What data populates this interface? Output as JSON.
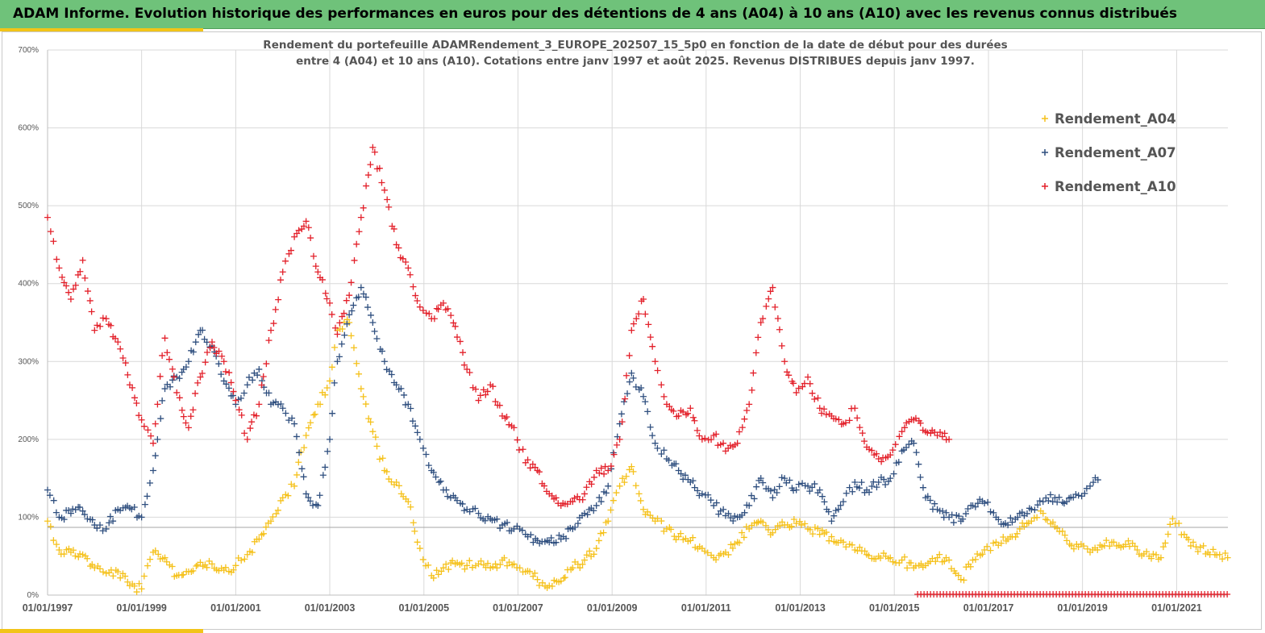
{
  "banner": {
    "title": "ADAM Informe. Evolution historique des performances en euros pour des détentions de 4 ans (A04) à 10 ans (A10) avec les revenus connus distribués"
  },
  "colors": {
    "banner": "#6fc27a",
    "accent": "#f2c418",
    "series_A04": "#f5c11a",
    "series_A07": "#2f4f7f",
    "series_A10": "#e3202a",
    "grid": "#d9d9d9",
    "reference_line": "#a6a6a6"
  },
  "chart_data": {
    "type": "scatter",
    "title_line1": "Rendement du portefeuille ADAMRendement_3_EUROPE_202507_15_5p0  en fonction de la date de début pour des durées",
    "title_line2": "entre 4 (A04) et 10 ans (A10). Cotations entre janv 1997 et août 2025. Revenus DISTRIBUES depuis janv 1997.",
    "xlabel": "",
    "ylabel": "",
    "x_ticks": [
      "01/01/1997",
      "01/01/1999",
      "01/01/2001",
      "01/01/2003",
      "01/01/2005",
      "01/01/2007",
      "01/01/2009",
      "01/01/2011",
      "01/01/2013",
      "01/01/2015",
      "01/01/2017",
      "01/01/2019",
      "01/01/2021"
    ],
    "y_ticks": [
      "0%",
      "100%",
      "200%",
      "300%",
      "400%",
      "500%",
      "600%",
      "700%"
    ],
    "xlim": [
      "1997-01-01",
      "2022-03-01"
    ],
    "ylim": [
      0,
      700
    ],
    "y_unit": "%",
    "grid": true,
    "marker": "+",
    "legend_position": "top-right",
    "reference_line_y": 87,
    "series": [
      {
        "name": "Rendement_A04",
        "color": "#f5c11a",
        "points": [
          [
            "1997-01-01",
            95
          ],
          [
            "1997-04-01",
            58
          ],
          [
            "1997-07-01",
            55
          ],
          [
            "1997-10-01",
            52
          ],
          [
            "1998-01-01",
            35
          ],
          [
            "1998-04-01",
            28
          ],
          [
            "1998-07-01",
            30
          ],
          [
            "1998-10-01",
            12
          ],
          [
            "1999-01-01",
            8
          ],
          [
            "1999-04-01",
            55
          ],
          [
            "1999-07-01",
            48
          ],
          [
            "1999-10-01",
            25
          ],
          [
            "2000-01-01",
            30
          ],
          [
            "2000-04-01",
            42
          ],
          [
            "2000-07-01",
            40
          ],
          [
            "2000-10-01",
            32
          ],
          [
            "2001-01-01",
            38
          ],
          [
            "2001-04-01",
            52
          ],
          [
            "2001-07-01",
            72
          ],
          [
            "2001-10-01",
            95
          ],
          [
            "2002-01-01",
            125
          ],
          [
            "2002-04-01",
            140
          ],
          [
            "2002-07-01",
            205
          ],
          [
            "2002-10-01",
            245
          ],
          [
            "2003-01-01",
            275
          ],
          [
            "2003-03-01",
            340
          ],
          [
            "2003-06-01",
            350
          ],
          [
            "2003-09-01",
            265
          ],
          [
            "2003-12-01",
            210
          ],
          [
            "2004-03-01",
            160
          ],
          [
            "2004-06-01",
            145
          ],
          [
            "2004-09-01",
            120
          ],
          [
            "2004-12-01",
            60
          ],
          [
            "2005-03-01",
            25
          ],
          [
            "2005-06-01",
            35
          ],
          [
            "2005-09-01",
            40
          ],
          [
            "2005-12-01",
            38
          ],
          [
            "2006-03-01",
            40
          ],
          [
            "2006-06-01",
            35
          ],
          [
            "2006-09-01",
            45
          ],
          [
            "2006-12-01",
            40
          ],
          [
            "2007-03-01",
            30
          ],
          [
            "2007-06-01",
            20
          ],
          [
            "2007-09-01",
            12
          ],
          [
            "2007-12-01",
            18
          ],
          [
            "2008-03-01",
            35
          ],
          [
            "2008-06-01",
            45
          ],
          [
            "2008-09-01",
            60
          ],
          [
            "2008-12-01",
            95
          ],
          [
            "2009-03-01",
            140
          ],
          [
            "2009-06-01",
            165
          ],
          [
            "2009-09-01",
            110
          ],
          [
            "2009-12-01",
            95
          ],
          [
            "2010-03-01",
            85
          ],
          [
            "2010-06-01",
            75
          ],
          [
            "2010-09-01",
            70
          ],
          [
            "2010-12-01",
            60
          ],
          [
            "2011-03-01",
            48
          ],
          [
            "2011-06-01",
            55
          ],
          [
            "2011-09-01",
            68
          ],
          [
            "2011-12-01",
            85
          ],
          [
            "2012-03-01",
            95
          ],
          [
            "2012-06-01",
            80
          ],
          [
            "2012-09-01",
            90
          ],
          [
            "2012-12-01",
            92
          ],
          [
            "2013-03-01",
            85
          ],
          [
            "2013-06-01",
            78
          ],
          [
            "2013-09-01",
            75
          ],
          [
            "2013-12-01",
            68
          ],
          [
            "2014-03-01",
            58
          ],
          [
            "2014-06-01",
            52
          ],
          [
            "2014-09-01",
            50
          ],
          [
            "2014-12-01",
            48
          ],
          [
            "2015-03-01",
            45
          ],
          [
            "2015-06-01",
            35
          ],
          [
            "2015-09-01",
            38
          ],
          [
            "2015-12-01",
            48
          ],
          [
            "2016-03-01",
            45
          ],
          [
            "2016-06-01",
            20
          ],
          [
            "2016-09-01",
            45
          ],
          [
            "2016-12-01",
            58
          ],
          [
            "2017-03-01",
            68
          ],
          [
            "2017-06-01",
            72
          ],
          [
            "2017-09-01",
            85
          ],
          [
            "2017-12-01",
            95
          ],
          [
            "2018-03-01",
            105
          ],
          [
            "2018-06-01",
            88
          ],
          [
            "2018-09-01",
            70
          ],
          [
            "2018-12-01",
            62
          ],
          [
            "2019-03-01",
            55
          ],
          [
            "2019-06-01",
            62
          ],
          [
            "2019-09-01",
            68
          ],
          [
            "2019-12-01",
            65
          ],
          [
            "2020-03-01",
            58
          ],
          [
            "2020-06-01",
            50
          ],
          [
            "2020-09-01",
            48
          ],
          [
            "2020-12-01",
            98
          ],
          [
            "2021-03-01",
            78
          ],
          [
            "2021-06-01",
            62
          ],
          [
            "2021-09-01",
            55
          ],
          [
            "2021-12-01",
            52
          ],
          [
            "2022-02-01",
            48
          ]
        ]
      },
      {
        "name": "Rendement_A07",
        "color": "#2f4f7f",
        "points": [
          [
            "1997-01-01",
            135
          ],
          [
            "1997-04-01",
            100
          ],
          [
            "1997-07-01",
            105
          ],
          [
            "1997-10-01",
            108
          ],
          [
            "1998-01-01",
            90
          ],
          [
            "1998-04-01",
            85
          ],
          [
            "1998-07-01",
            110
          ],
          [
            "1998-10-01",
            112
          ],
          [
            "1999-01-01",
            100
          ],
          [
            "1999-04-01",
            160
          ],
          [
            "1999-07-01",
            265
          ],
          [
            "1999-10-01",
            280
          ],
          [
            "2000-01-01",
            300
          ],
          [
            "2000-04-01",
            340
          ],
          [
            "2000-07-01",
            320
          ],
          [
            "2000-10-01",
            275
          ],
          [
            "2001-01-01",
            245
          ],
          [
            "2001-04-01",
            270
          ],
          [
            "2001-07-01",
            290
          ],
          [
            "2001-10-01",
            245
          ],
          [
            "2002-01-01",
            240
          ],
          [
            "2002-04-01",
            220
          ],
          [
            "2002-07-01",
            130
          ],
          [
            "2002-10-01",
            115
          ],
          [
            "2003-01-01",
            200
          ],
          [
            "2003-03-01",
            300
          ],
          [
            "2003-06-01",
            360
          ],
          [
            "2003-09-01",
            395
          ],
          [
            "2003-12-01",
            350
          ],
          [
            "2004-03-01",
            300
          ],
          [
            "2004-06-01",
            270
          ],
          [
            "2004-09-01",
            245
          ],
          [
            "2004-12-01",
            200
          ],
          [
            "2005-03-01",
            160
          ],
          [
            "2005-06-01",
            135
          ],
          [
            "2005-09-01",
            125
          ],
          [
            "2005-12-01",
            110
          ],
          [
            "2006-03-01",
            105
          ],
          [
            "2006-06-01",
            98
          ],
          [
            "2006-09-01",
            90
          ],
          [
            "2006-12-01",
            85
          ],
          [
            "2007-03-01",
            78
          ],
          [
            "2007-06-01",
            70
          ],
          [
            "2007-09-01",
            68
          ],
          [
            "2007-12-01",
            72
          ],
          [
            "2008-03-01",
            85
          ],
          [
            "2008-06-01",
            105
          ],
          [
            "2008-09-01",
            115
          ],
          [
            "2008-12-01",
            140
          ],
          [
            "2009-03-01",
            220
          ],
          [
            "2009-06-01",
            285
          ],
          [
            "2009-09-01",
            255
          ],
          [
            "2009-12-01",
            195
          ],
          [
            "2010-03-01",
            175
          ],
          [
            "2010-06-01",
            160
          ],
          [
            "2010-09-01",
            145
          ],
          [
            "2010-12-01",
            130
          ],
          [
            "2011-03-01",
            115
          ],
          [
            "2011-06-01",
            102
          ],
          [
            "2011-09-01",
            100
          ],
          [
            "2011-12-01",
            115
          ],
          [
            "2012-03-01",
            150
          ],
          [
            "2012-06-01",
            125
          ],
          [
            "2012-09-01",
            150
          ],
          [
            "2012-12-01",
            135
          ],
          [
            "2013-03-01",
            140
          ],
          [
            "2013-06-01",
            135
          ],
          [
            "2013-09-01",
            95
          ],
          [
            "2013-12-01",
            120
          ],
          [
            "2014-03-01",
            145
          ],
          [
            "2014-06-01",
            135
          ],
          [
            "2014-09-01",
            145
          ],
          [
            "2014-12-01",
            150
          ],
          [
            "2015-03-01",
            185
          ],
          [
            "2015-06-01",
            195
          ],
          [
            "2015-09-01",
            125
          ],
          [
            "2015-12-01",
            110
          ],
          [
            "2016-03-01",
            100
          ],
          [
            "2016-06-01",
            95
          ],
          [
            "2016-09-01",
            115
          ],
          [
            "2016-12-01",
            118
          ],
          [
            "2017-03-01",
            100
          ],
          [
            "2017-06-01",
            90
          ],
          [
            "2017-09-01",
            105
          ],
          [
            "2017-12-01",
            110
          ],
          [
            "2018-03-01",
            120
          ],
          [
            "2018-06-01",
            125
          ],
          [
            "2018-09-01",
            120
          ],
          [
            "2018-12-01",
            128
          ],
          [
            "2019-03-01",
            140
          ],
          [
            "2019-05-01",
            148
          ]
        ]
      },
      {
        "name": "Rendement_A10",
        "color": "#e3202a",
        "points": [
          [
            "1997-01-01",
            485
          ],
          [
            "1997-04-01",
            420
          ],
          [
            "1997-07-01",
            380
          ],
          [
            "1997-10-01",
            430
          ],
          [
            "1998-01-01",
            340
          ],
          [
            "1998-04-01",
            355
          ],
          [
            "1998-07-01",
            325
          ],
          [
            "1998-10-01",
            270
          ],
          [
            "1999-01-01",
            225
          ],
          [
            "1999-04-01",
            195
          ],
          [
            "1999-07-01",
            330
          ],
          [
            "1999-10-01",
            260
          ],
          [
            "2000-01-01",
            215
          ],
          [
            "2000-04-01",
            280
          ],
          [
            "2000-07-01",
            325
          ],
          [
            "2000-10-01",
            300
          ],
          [
            "2001-01-01",
            250
          ],
          [
            "2001-04-01",
            200
          ],
          [
            "2001-07-01",
            245
          ],
          [
            "2001-10-01",
            340
          ],
          [
            "2002-01-01",
            415
          ],
          [
            "2002-04-01",
            460
          ],
          [
            "2002-07-01",
            480
          ],
          [
            "2002-10-01",
            415
          ],
          [
            "2003-01-01",
            375
          ],
          [
            "2003-03-01",
            335
          ],
          [
            "2003-06-01",
            385
          ],
          [
            "2003-09-01",
            485
          ],
          [
            "2003-12-01",
            575
          ],
          [
            "2004-03-01",
            520
          ],
          [
            "2004-06-01",
            450
          ],
          [
            "2004-09-01",
            420
          ],
          [
            "2004-12-01",
            370
          ],
          [
            "2005-03-01",
            355
          ],
          [
            "2005-06-01",
            375
          ],
          [
            "2005-09-01",
            345
          ],
          [
            "2005-12-01",
            290
          ],
          [
            "2006-03-01",
            250
          ],
          [
            "2006-06-01",
            270
          ],
          [
            "2006-09-01",
            230
          ],
          [
            "2006-12-01",
            215
          ],
          [
            "2007-03-01",
            170
          ],
          [
            "2007-06-01",
            160
          ],
          [
            "2007-09-01",
            130
          ],
          [
            "2007-12-01",
            115
          ],
          [
            "2008-03-01",
            120
          ],
          [
            "2008-06-01",
            130
          ],
          [
            "2008-09-01",
            160
          ],
          [
            "2008-12-01",
            160
          ],
          [
            "2009-03-01",
            200
          ],
          [
            "2009-06-01",
            340
          ],
          [
            "2009-09-01",
            380
          ],
          [
            "2009-12-01",
            300
          ],
          [
            "2010-03-01",
            245
          ],
          [
            "2010-06-01",
            230
          ],
          [
            "2010-09-01",
            240
          ],
          [
            "2010-12-01",
            200
          ],
          [
            "2011-03-01",
            205
          ],
          [
            "2011-06-01",
            185
          ],
          [
            "2011-09-01",
            195
          ],
          [
            "2011-12-01",
            245
          ],
          [
            "2012-03-01",
            350
          ],
          [
            "2012-06-01",
            395
          ],
          [
            "2012-09-01",
            300
          ],
          [
            "2012-12-01",
            260
          ],
          [
            "2013-03-01",
            280
          ],
          [
            "2013-06-01",
            240
          ],
          [
            "2013-09-01",
            230
          ],
          [
            "2013-12-01",
            220
          ],
          [
            "2014-03-01",
            240
          ],
          [
            "2014-06-01",
            190
          ],
          [
            "2014-09-01",
            175
          ],
          [
            "2014-12-01",
            180
          ],
          [
            "2015-03-01",
            210
          ],
          [
            "2015-06-01",
            225
          ],
          [
            "2015-09-01",
            210
          ],
          [
            "2015-12-01",
            205
          ],
          [
            "2016-03-01",
            200
          ]
        ]
      }
    ]
  }
}
